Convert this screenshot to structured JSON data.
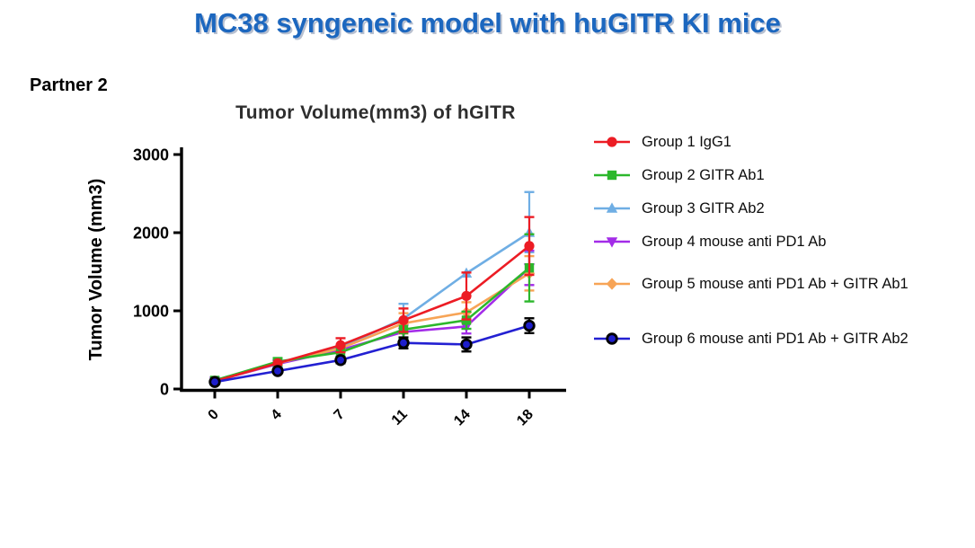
{
  "slide": {
    "title": "MC38 syngeneic model with huGITR KI mice",
    "partner_label": "Partner 2"
  },
  "colors": {
    "title_blue": "#1C67BF",
    "axis_black": "#000000",
    "chart_title_gray": "#2e2e2e"
  },
  "chart_data": {
    "type": "line",
    "title": "Tumor Volume(mm3) of hGITR",
    "xlabel": "",
    "ylabel": "Tumor Volume (mm3)",
    "x_tick_labels": [
      "0",
      "4",
      "7",
      "11",
      "14",
      "18"
    ],
    "x_days": [
      0,
      4,
      7,
      11,
      14,
      18
    ],
    "ylim": [
      0,
      3000
    ],
    "yticks": [
      0,
      1000,
      2000,
      3000
    ],
    "grid": false,
    "legend_position": "right",
    "error_bars": "sd",
    "series": [
      {
        "name": "Group 1 IgG1",
        "marker": "circle",
        "color": "#EC1C24",
        "values": [
          100,
          330,
          560,
          880,
          1190,
          1830
        ],
        "err_up": [
          0,
          0,
          90,
          150,
          300,
          370
        ],
        "err_down": [
          0,
          0,
          90,
          150,
          300,
          370
        ]
      },
      {
        "name": "Group 2 GITR Ab1",
        "marker": "square",
        "color": "#2CB72C",
        "values": [
          110,
          350,
          470,
          760,
          880,
          1550
        ],
        "err_up": [
          0,
          45,
          60,
          120,
          110,
          430
        ],
        "err_down": [
          0,
          45,
          60,
          120,
          110,
          430
        ]
      },
      {
        "name": "Group 3 GITR Ab2",
        "marker": "triangle-up",
        "color": "#6FAEE4",
        "values": [
          100,
          330,
          530,
          900,
          1480,
          2000
        ],
        "err_up": [
          0,
          0,
          0,
          190,
          0,
          520
        ],
        "err_down": [
          0,
          0,
          0,
          190,
          0,
          250
        ]
      },
      {
        "name": "Group 4 mouse anti PD1 Ab",
        "marker": "triangle-down",
        "color": "#A32CE8",
        "values": [
          100,
          320,
          500,
          730,
          800,
          1550
        ],
        "err_up": [
          0,
          0,
          0,
          90,
          90,
          220
        ],
        "err_down": [
          0,
          0,
          0,
          90,
          90,
          220
        ]
      },
      {
        "name": "Group 5 mouse anti PD1 Ab + GITR Ab1",
        "marker": "diamond",
        "color": "#F7A456",
        "values": [
          100,
          330,
          520,
          840,
          980,
          1480
        ],
        "err_up": [
          0,
          0,
          0,
          130,
          130,
          220
        ],
        "err_down": [
          0,
          0,
          0,
          130,
          130,
          220
        ]
      },
      {
        "name": "Group 6 mouse anti PD1 Ab + GITR Ab2",
        "marker": "circle-outlined",
        "color": "#2320D2",
        "marker_fill": "#1E1ECB",
        "marker_outline": "#000000",
        "err_color": "#000000",
        "values": [
          90,
          230,
          370,
          590,
          570,
          810
        ],
        "err_up": [
          0,
          0,
          40,
          70,
          90,
          95
        ],
        "err_down": [
          0,
          0,
          40,
          70,
          90,
          95
        ]
      }
    ]
  }
}
